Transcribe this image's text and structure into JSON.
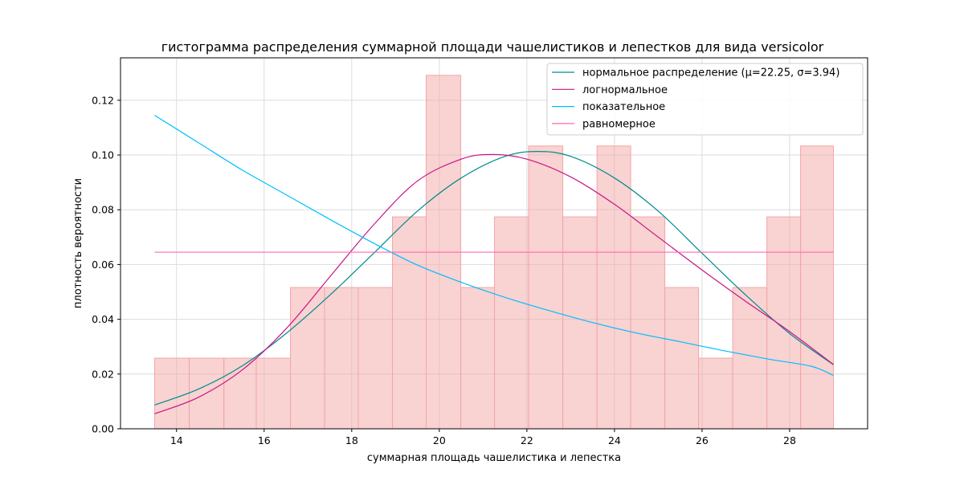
{
  "chart_data": {
    "type": "histogram",
    "title": "гистограмма распределения суммарной площади чашелистиков и лепестков для вида versicolor",
    "xlabel": "суммарная площадь чашелистика и лепестка",
    "ylabel": "плотность вероятности",
    "xlim": [
      12.72,
      29.78
    ],
    "ylim": [
      0,
      0.1355
    ],
    "xticks": [
      "14",
      "16",
      "18",
      "20",
      "22",
      "24",
      "26",
      "28"
    ],
    "yticks": [
      "0.00",
      "0.02",
      "0.04",
      "0.06",
      "0.08",
      "0.10",
      "0.12"
    ],
    "grid": true,
    "legend_position": "top-right",
    "histogram": {
      "bin_edges": [
        13.5,
        14.29,
        15.08,
        15.82,
        16.6,
        17.38,
        18.15,
        18.93,
        19.7,
        20.49,
        21.26,
        22.04,
        22.82,
        23.6,
        24.37,
        25.15,
        25.92,
        26.7,
        27.48,
        28.25,
        29.0
      ],
      "densities": [
        0.0258,
        0.0258,
        0.0258,
        0.0258,
        0.0516,
        0.0516,
        0.0516,
        0.0774,
        0.1291,
        0.0516,
        0.0774,
        0.1033,
        0.0774,
        0.1033,
        0.0774,
        0.0516,
        0.0258,
        0.0516,
        0.0774,
        0.1033
      ],
      "color": "#f4a6a6"
    },
    "series": [
      {
        "name": "нормальное распределение (μ=22.25, σ=3.94)",
        "color": "#008b8b",
        "x": [
          13.5,
          14.5,
          15.5,
          16.5,
          17.5,
          18.5,
          19.5,
          20.5,
          21.5,
          22.25,
          23,
          24,
          25,
          26,
          27,
          28,
          29
        ],
        "values": [
          0.0087,
          0.0145,
          0.023,
          0.0348,
          0.0488,
          0.0641,
          0.0795,
          0.0916,
          0.0995,
          0.1013,
          0.0995,
          0.0916,
          0.0795,
          0.0641,
          0.0488,
          0.0348,
          0.0234
        ]
      },
      {
        "name": "логнормальное",
        "color": "#c71585",
        "x": [
          13.5,
          14.5,
          15.5,
          16.5,
          17.5,
          18.5,
          19.5,
          20.5,
          21.2,
          22,
          23,
          24,
          25,
          26,
          27,
          28,
          29
        ],
        "values": [
          0.0055,
          0.0115,
          0.0215,
          0.0365,
          0.0555,
          0.0745,
          0.0905,
          0.0985,
          0.1002,
          0.0985,
          0.092,
          0.082,
          0.07,
          0.058,
          0.0465,
          0.0355,
          0.0235
        ]
      },
      {
        "name": "показательное",
        "color": "#00bfff",
        "x": [
          13.5,
          14.5,
          15.5,
          16.5,
          17.5,
          18.5,
          19.5,
          20.5,
          21.5,
          22.5,
          23.5,
          24.5,
          25.5,
          26.5,
          27.5,
          28.5,
          29
        ],
        "values": [
          0.1145,
          0.1045,
          0.0945,
          0.0855,
          0.0765,
          0.0678,
          0.0598,
          0.0535,
          0.048,
          0.0432,
          0.0388,
          0.035,
          0.0318,
          0.0285,
          0.0255,
          0.0228,
          0.0195
        ]
      },
      {
        "name": "равномерное",
        "color": "#ff69b4",
        "x": [
          13.5,
          29
        ],
        "values": [
          0.0645,
          0.0645
        ]
      }
    ]
  }
}
